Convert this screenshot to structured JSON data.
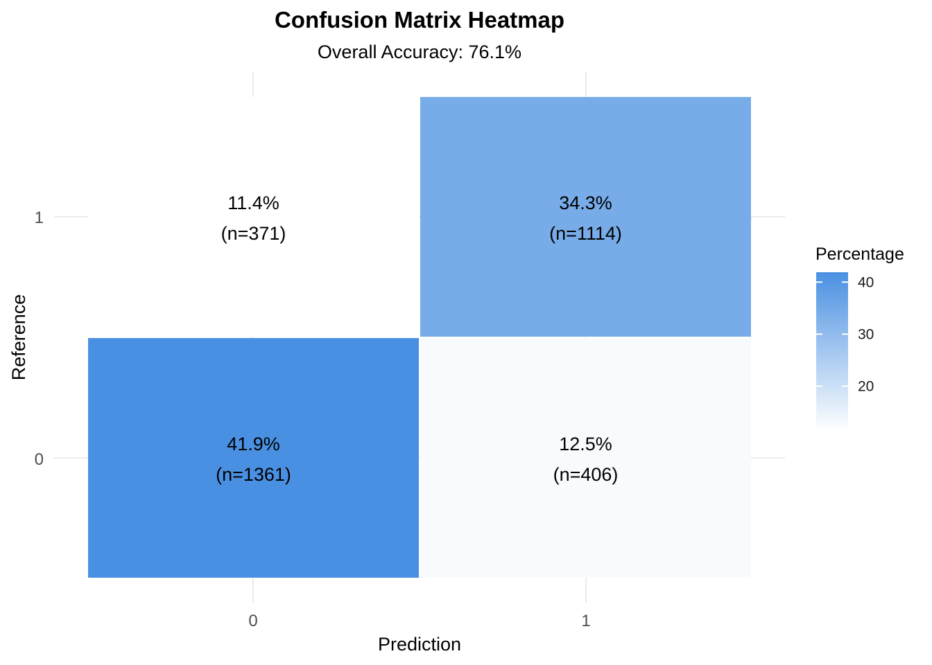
{
  "chart_data": {
    "type": "heatmap",
    "title": "Confusion Matrix Heatmap",
    "subtitle": "Overall Accuracy: 76.1%",
    "xlabel": "Prediction",
    "ylabel": "Reference",
    "x_categories": [
      "0",
      "1"
    ],
    "y_categories": [
      "0",
      "1"
    ],
    "cells": [
      {
        "prediction": "0",
        "reference": "0",
        "percentage": 41.9,
        "n": 1361,
        "label": "41.9%",
        "count_label": "(n=1361)"
      },
      {
        "prediction": "1",
        "reference": "0",
        "percentage": 12.5,
        "n": 406,
        "label": "12.5%",
        "count_label": "(n=406)"
      },
      {
        "prediction": "0",
        "reference": "1",
        "percentage": 11.4,
        "n": 371,
        "label": "11.4%",
        "count_label": "(n=371)"
      },
      {
        "prediction": "1",
        "reference": "1",
        "percentage": 34.3,
        "n": 1114,
        "label": "34.3%",
        "count_label": "(n=1114)"
      }
    ],
    "legend": {
      "title": "Percentage",
      "ticks": [
        "20",
        "30",
        "40"
      ],
      "tick_values": [
        20,
        30,
        40
      ],
      "range": [
        11.4,
        41.9
      ],
      "low_color": "#ffffff",
      "high_color": "#4a90e2",
      "placement": "right"
    },
    "grid": true
  }
}
